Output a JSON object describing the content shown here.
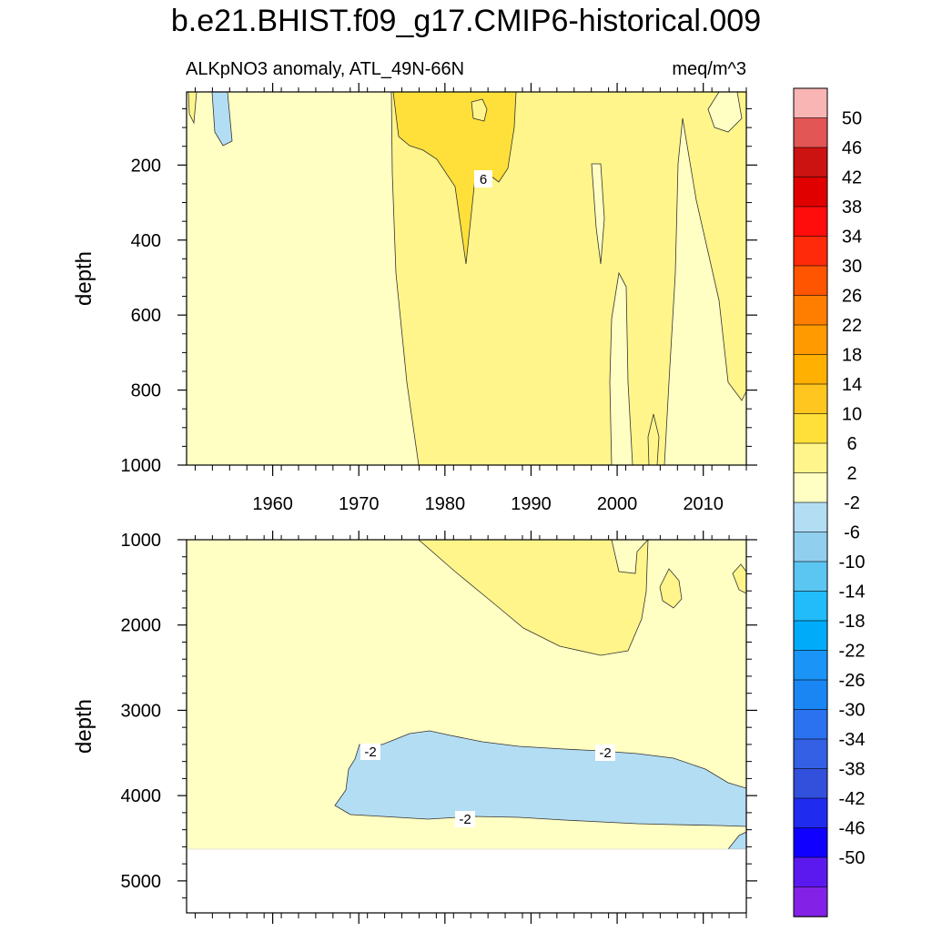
{
  "figure": {
    "title": "b.e21.BHIST.f09_g17.CMIP6-historical.009",
    "subtitle_left": "ALKpNO3 anomaly, ATL_49N-66N",
    "subtitle_right": "meq/m^3"
  },
  "colorbar": {
    "labels": [
      "50",
      "46",
      "42",
      "38",
      "34",
      "30",
      "26",
      "22",
      "18",
      "14",
      "10",
      "6",
      "2",
      "-2",
      "-6",
      "-10",
      "-14",
      "-18",
      "-22",
      "-26",
      "-30",
      "-34",
      "-38",
      "-42",
      "-46",
      "-50"
    ],
    "colors": [
      "#f9b4b4",
      "#e25656",
      "#cd1212",
      "#e00000",
      "#ff0d0d",
      "#ff2a0a",
      "#ff5500",
      "#ff7e00",
      "#ff9b00",
      "#ffb000",
      "#ffc620",
      "#ffe03a",
      "#fff58a",
      "#ffffc4",
      "#b3ddf3",
      "#91cfef",
      "#5cc6f2",
      "#21bcf9",
      "#00acfa",
      "#1a95f7",
      "#1a86f3",
      "#2a72f0",
      "#3460e6",
      "#3350dc",
      "#1f2cef",
      "#0f00ff",
      "#5b19ef",
      "#8322e6"
    ]
  },
  "chart_data": [
    {
      "type": "heatmap",
      "panel": "upper",
      "xlabel": "",
      "ylabel": "depth",
      "xlim": [
        1950,
        2015
      ],
      "ylim": [
        1000,
        5
      ],
      "x_ticks": [
        1960,
        1970,
        1980,
        1990,
        2000,
        2010
      ],
      "y_ticks": [
        200,
        400,
        600,
        800,
        1000
      ],
      "contour_levels": [
        -50,
        -46,
        -42,
        -38,
        -34,
        -30,
        -26,
        -22,
        -18,
        -14,
        -10,
        -6,
        -2,
        2,
        6,
        10,
        14,
        18,
        22,
        26,
        30,
        34,
        38,
        42,
        46,
        50
      ],
      "regions": [
        {
          "range": [
            -2,
            2
          ],
          "x": [
            1950,
            1977
          ],
          "depth": [
            5,
            1000
          ]
        },
        {
          "range": [
            2,
            6
          ],
          "x": [
            1977,
            2015
          ],
          "depth": [
            5,
            1000
          ]
        },
        {
          "range": [
            6,
            10
          ],
          "x": [
            1974,
            1990
          ],
          "depth": [
            5,
            280
          ]
        },
        {
          "range": [
            -6,
            -2
          ],
          "x": [
            1953,
            1955
          ],
          "depth": [
            5,
            140
          ]
        }
      ],
      "contour_labels": [
        {
          "text": "6",
          "x": 1984.4,
          "depth": 235
        }
      ]
    },
    {
      "type": "heatmap",
      "panel": "lower",
      "xlabel": "",
      "ylabel": "depth",
      "xlim": [
        1950,
        2015
      ],
      "ylim": [
        5375,
        1000
      ],
      "y_ticks": [
        1000,
        2000,
        3000,
        4000,
        5000
      ],
      "ocean_bottom": 4620,
      "regions": [
        {
          "range": [
            -2,
            2
          ],
          "x": [
            1950,
            2015
          ],
          "depth": [
            1000,
            4620
          ]
        },
        {
          "range": [
            2,
            6
          ],
          "x": [
            1977,
            2005
          ],
          "depth": [
            1000,
            2380
          ]
        },
        {
          "range": [
            -6,
            -2
          ],
          "x": [
            1967,
            2015
          ],
          "depth": [
            3250,
            4300
          ]
        }
      ],
      "contour_labels": [
        {
          "text": "-2",
          "x": 1971.5,
          "depth": 3500
        },
        {
          "text": "-2",
          "x": 1997.5,
          "depth": 3500
        },
        {
          "text": "-2",
          "x": 1983,
          "depth": 4270
        }
      ]
    }
  ]
}
